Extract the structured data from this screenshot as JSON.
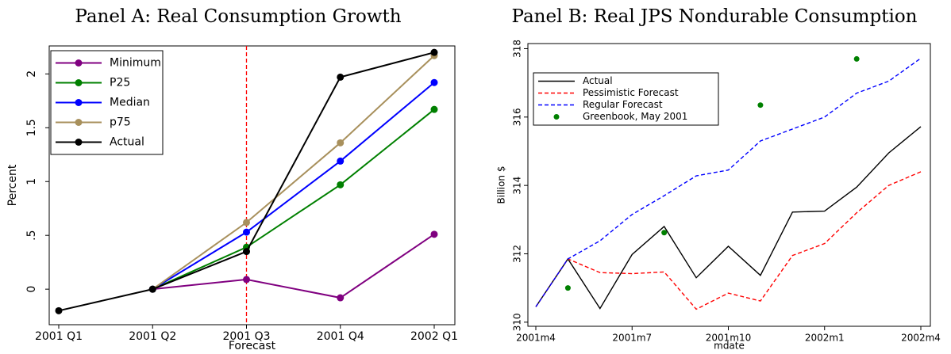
{
  "chart_data": [
    {
      "type": "line",
      "title": "Panel A: Real Consumption Growth",
      "x_label": "Forecast",
      "y_label": "Percent",
      "categories": [
        "2001 Q1",
        "2001 Q2",
        "2001 Q3",
        "2001 Q4",
        "2002 Q1"
      ],
      "series": [
        {
          "name": "Minimum",
          "color": "#800080",
          "values": [
            null,
            0,
            0.09,
            -0.08,
            0.51
          ]
        },
        {
          "name": "P25",
          "color": "#008000",
          "values": [
            null,
            0,
            0.39,
            0.97,
            1.67
          ]
        },
        {
          "name": "Median",
          "color": "#0000ff",
          "values": [
            null,
            0,
            0.53,
            1.19,
            1.92
          ]
        },
        {
          "name": "p75",
          "color": "#a8905c",
          "values": [
            null,
            0,
            0.62,
            1.36,
            2.17
          ]
        },
        {
          "name": "Actual",
          "color": "#000000",
          "values": [
            -0.2,
            0,
            0.35,
            1.97,
            2.2
          ]
        }
      ],
      "markers": true,
      "vline_at": "2001 Q3",
      "vline_color": "#ff0000",
      "ylim": [
        -0.33,
        2.26
      ],
      "yticks": [
        0,
        {
          "value": 0.5,
          "label": ".5"
        },
        1,
        1.5,
        2
      ],
      "legend": "top-left"
    },
    {
      "type": "line",
      "title": "Panel B: Real JPS Nondurable Consumption",
      "x_label": "mdate",
      "y_label": "Billion $",
      "categories": [
        "2001m4",
        null,
        null,
        "2001m7",
        null,
        null,
        "2001m10",
        null,
        null,
        "2002m1",
        null,
        null,
        "2002m4"
      ],
      "series": [
        {
          "name": "Actual",
          "color": "#000000",
          "style": "solid",
          "values": [
            310.45,
            311.85,
            310.4,
            311.98,
            312.8,
            311.3,
            312.22,
            311.37,
            313.22,
            313.25,
            313.95,
            314.95,
            315.72
          ]
        },
        {
          "name": "Pessimistic Forecast",
          "color": "#ff0000",
          "style": "dashed",
          "values": [
            310.45,
            311.85,
            311.45,
            311.42,
            311.47,
            310.38,
            310.85,
            310.62,
            311.95,
            312.3,
            313.2,
            314.0,
            314.4
          ]
        },
        {
          "name": "Regular Forecast",
          "color": "#0000ff",
          "style": "dashed",
          "values": [
            310.45,
            311.85,
            312.38,
            313.15,
            313.7,
            314.28,
            314.45,
            315.3,
            315.65,
            316.0,
            316.7,
            317.05,
            317.72
          ]
        },
        {
          "name": "Greenbook, May 2001",
          "color": "#008000",
          "style": "markers",
          "values": [
            null,
            311.0,
            null,
            null,
            312.62,
            null,
            null,
            316.35,
            null,
            null,
            317.7,
            null,
            null
          ]
        }
      ],
      "ylim": [
        309.88,
        318.15
      ],
      "yticks": [
        310,
        312,
        314,
        316,
        318
      ],
      "legend": "top-left"
    }
  ]
}
